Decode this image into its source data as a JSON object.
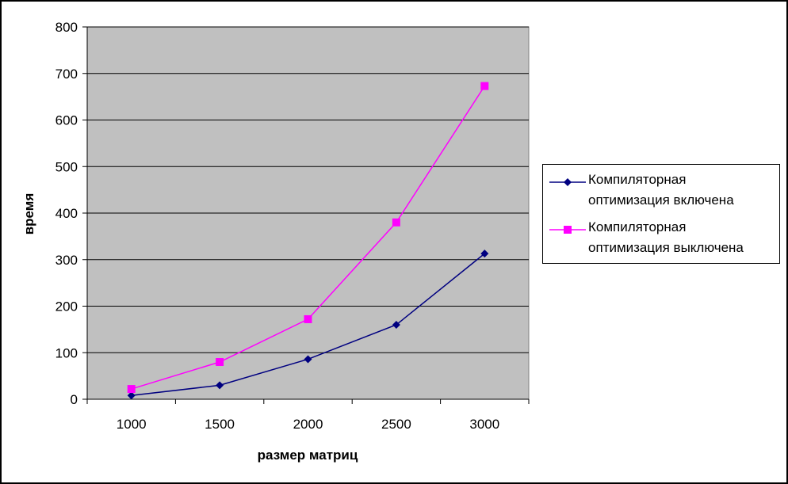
{
  "chart_data": {
    "type": "line",
    "x": [
      1000,
      1500,
      2000,
      2500,
      3000
    ],
    "categories": [
      "1000",
      "1500",
      "2000",
      "2500",
      "3000"
    ],
    "series": [
      {
        "name": "Компиляторная оптимизация включена",
        "values": [
          8,
          30,
          86,
          160,
          313
        ],
        "color": "#000080",
        "marker": "diamond"
      },
      {
        "name": "Компиляторная оптимизация выключена",
        "values": [
          22,
          80,
          172,
          380,
          673
        ],
        "color": "#FF00FF",
        "marker": "square"
      }
    ],
    "xlabel": "размер матриц",
    "ylabel": "время",
    "ylim": [
      0,
      800
    ],
    "yticks": [
      "0",
      "100",
      "200",
      "300",
      "400",
      "500",
      "600",
      "700",
      "800"
    ],
    "grid": true,
    "plot_background": "#C0C0C0",
    "legend_position": "right"
  },
  "legend": {
    "item1": "Компиляторная\nоптимизация включена",
    "item2": "Компиляторная\nоптимизация выключена"
  }
}
